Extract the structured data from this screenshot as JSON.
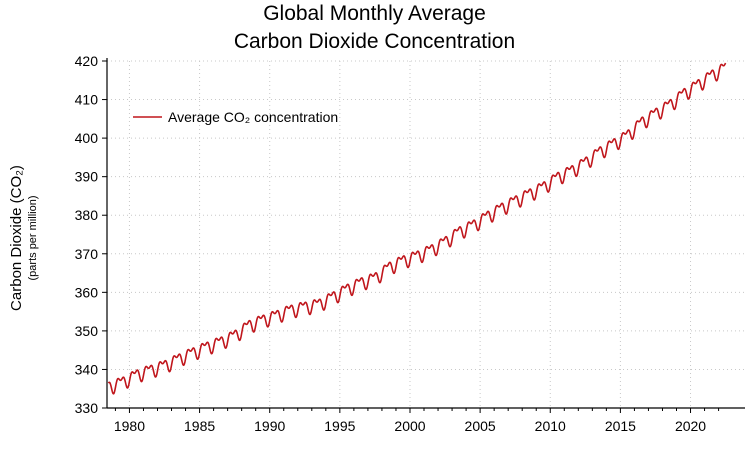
{
  "chart_data": {
    "type": "line",
    "title_line1": "Global Monthly Average",
    "title_line2": "Carbon Dioxide Concentration",
    "ylabel": "Carbon Dioxide (CO₂)",
    "ylabel_sub": "(parts per million)",
    "xlabel": "",
    "ylim": [
      330,
      420
    ],
    "xlim": [
      1978.4,
      2022.6
    ],
    "y_ticks": [
      330,
      340,
      350,
      360,
      370,
      380,
      390,
      400,
      410,
      420
    ],
    "x_ticks": [
      1980,
      1985,
      1990,
      1995,
      2000,
      2005,
      2010,
      2015,
      2020
    ],
    "grid": true,
    "legend_position": "top-left",
    "series": [
      {
        "name": "Average CO₂ concentration",
        "color": "#c0161c",
        "start_year": 1978.5,
        "end_year": 2022.5,
        "annual_mean": [
          [
            1979,
            336.8
          ],
          [
            1980,
            338.7
          ],
          [
            1981,
            339.9
          ],
          [
            1982,
            341.1
          ],
          [
            1983,
            342.8
          ],
          [
            1984,
            344.4
          ],
          [
            1985,
            345.9
          ],
          [
            1986,
            347.2
          ],
          [
            1987,
            348.9
          ],
          [
            1988,
            351.5
          ],
          [
            1989,
            352.9
          ],
          [
            1990,
            354.1
          ],
          [
            1991,
            355.5
          ],
          [
            1992,
            356.3
          ],
          [
            1993,
            357.0
          ],
          [
            1994,
            358.9
          ],
          [
            1995,
            360.9
          ],
          [
            1996,
            362.6
          ],
          [
            1997,
            363.8
          ],
          [
            1998,
            366.6
          ],
          [
            1999,
            368.3
          ],
          [
            2000,
            369.5
          ],
          [
            2001,
            371.1
          ],
          [
            2002,
            373.2
          ],
          [
            2003,
            375.8
          ],
          [
            2004,
            377.5
          ],
          [
            2005,
            379.8
          ],
          [
            2006,
            381.9
          ],
          [
            2007,
            383.8
          ],
          [
            2008,
            385.6
          ],
          [
            2009,
            387.4
          ],
          [
            2010,
            389.9
          ],
          [
            2011,
            391.6
          ],
          [
            2012,
            393.8
          ],
          [
            2013,
            396.5
          ],
          [
            2014,
            398.6
          ],
          [
            2015,
            400.8
          ],
          [
            2016,
            404.2
          ],
          [
            2017,
            406.5
          ],
          [
            2018,
            408.7
          ],
          [
            2019,
            411.6
          ],
          [
            2020,
            413.9
          ],
          [
            2021,
            416.4
          ],
          [
            2022,
            418.5
          ]
        ],
        "seasonal_amplitude": 2.3
      }
    ]
  }
}
